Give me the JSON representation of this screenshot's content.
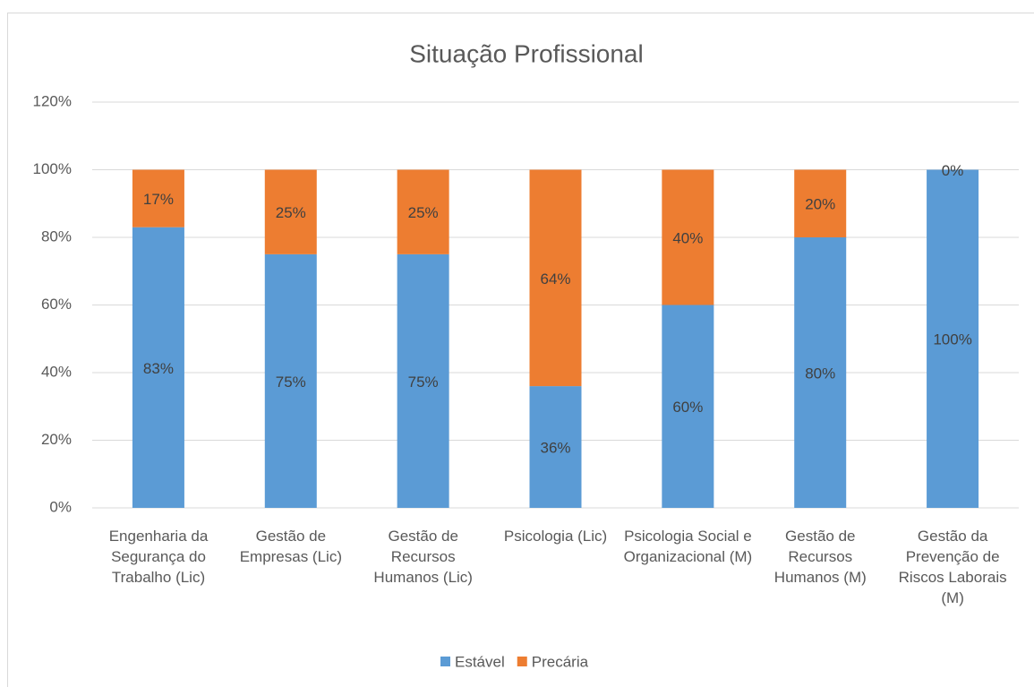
{
  "chart_data": {
    "type": "stacked_bar",
    "title": "Situação Profissional",
    "categories": [
      "Engenharia da Segurança do Trabalho (Lic)",
      "Gestão de Empresas (Lic)",
      "Gestão de Recursos Humanos (Lic)",
      "Psicologia (Lic)",
      "Psicologia Social e Organizacional (M)",
      "Gestão de Recursos Humanos (M)",
      "Gestão da Prevenção de Riscos Laborais (M)"
    ],
    "series": [
      {
        "name": "Estável",
        "color": "#5b9bd5",
        "values": [
          83,
          75,
          75,
          36,
          60,
          80,
          100
        ],
        "value_labels": [
          "83%",
          "75%",
          "75%",
          "36%",
          "60%",
          "80%",
          "100%"
        ]
      },
      {
        "name": "Precária",
        "color": "#ed7d31",
        "values": [
          17,
          25,
          25,
          64,
          40,
          20,
          0
        ],
        "value_labels": [
          "17%",
          "25%",
          "25%",
          "64%",
          "40%",
          "20%",
          "0%"
        ]
      }
    ],
    "ylim": [
      0,
      120
    ],
    "yticks": [
      {
        "value": 0,
        "label": "0%"
      },
      {
        "value": 20,
        "label": "20%"
      },
      {
        "value": 40,
        "label": "40%"
      },
      {
        "value": 60,
        "label": "60%"
      },
      {
        "value": 80,
        "label": "80%"
      },
      {
        "value": 100,
        "label": "100%"
      },
      {
        "value": 120,
        "label": "120%"
      }
    ],
    "grid": true,
    "legend": "bottom"
  }
}
